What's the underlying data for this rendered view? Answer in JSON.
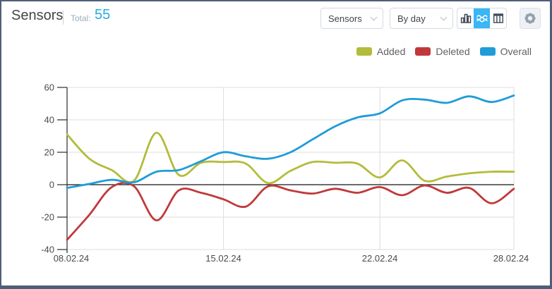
{
  "header": {
    "title": "Sensors",
    "total_label": "Total:",
    "total_value": "55"
  },
  "toolbar": {
    "type_select": {
      "value": "Sensors",
      "icon": "chevron-down-icon"
    },
    "period_select": {
      "value": "By day",
      "icon": "chevron-down-icon"
    },
    "view_buttons": [
      {
        "id": "bar-view",
        "icon": "bar-chart-icon",
        "active": false
      },
      {
        "id": "stream-view",
        "icon": "stream-chart-icon",
        "active": true,
        "active_color": "#38b6f6"
      },
      {
        "id": "table-view",
        "icon": "table-icon",
        "active": false
      }
    ],
    "settings": {
      "icon": "gear-icon"
    }
  },
  "legend": [
    {
      "label": "Added",
      "color": "#b3bc3a"
    },
    {
      "label": "Deleted",
      "color": "#c1383a"
    },
    {
      "label": "Overall",
      "color": "#209cd8"
    }
  ],
  "chart_data": {
    "type": "line",
    "smoothing": "spline",
    "x_unit": "day",
    "num_points": 21,
    "x_ticks": [
      "08.02.24",
      "15.02.24",
      "22.02.24",
      "28.02.24"
    ],
    "x_tick_indices": [
      0,
      7,
      14,
      20
    ],
    "y_ticks": [
      60,
      40,
      20,
      0,
      -20,
      -40
    ],
    "ylim": [
      -40,
      60
    ],
    "grid": true,
    "legend_position": "top-right",
    "series": [
      {
        "name": "Added",
        "color": "#b3bc3a",
        "values": [
          31,
          16,
          9,
          2.5,
          32,
          6,
          13.5,
          14,
          13,
          1,
          8.5,
          14,
          13.5,
          13,
          4.5,
          15,
          2.5,
          5,
          7,
          8,
          8
        ]
      },
      {
        "name": "Deleted",
        "color": "#c1383a",
        "values": [
          -34,
          -18.5,
          -1.5,
          -1,
          -22,
          -3.5,
          -5,
          -9,
          -13.5,
          -1,
          -3.5,
          -5.5,
          -2.5,
          -5,
          -1.5,
          -6.5,
          -0.5,
          -5,
          -2,
          -11.5,
          -2.5
        ]
      },
      {
        "name": "Overall",
        "color": "#209cd8",
        "values": [
          -2,
          0.5,
          3,
          1.5,
          8,
          9,
          14.5,
          20,
          17.5,
          16,
          20,
          28,
          36,
          41.5,
          44,
          52,
          52.5,
          50.5,
          54.5,
          51,
          55
        ]
      }
    ]
  }
}
